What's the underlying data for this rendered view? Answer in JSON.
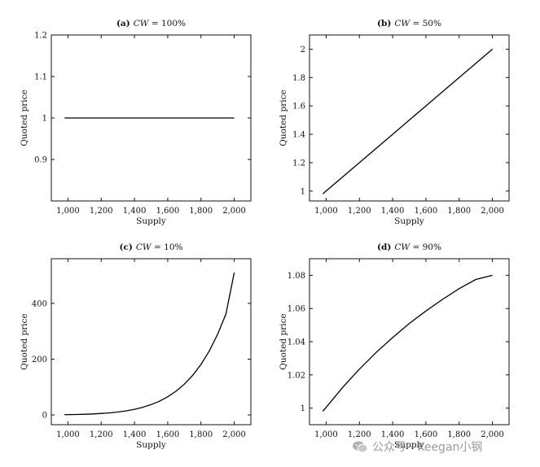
{
  "watermark": {
    "text": "公众号 · Keegan小钢",
    "icon": "wechat-icon"
  },
  "chart_data": [
    {
      "type": "line",
      "panel_label": "(a)",
      "param_symbol": "CW",
      "param_value": " = 100%",
      "xlabel": "Supply",
      "ylabel": "Quoted price",
      "xlim": [
        900,
        2100
      ],
      "ylim": [
        0.8,
        1.2
      ],
      "xticks": [
        1000,
        1200,
        1400,
        1600,
        1800,
        2000
      ],
      "xtick_labels": [
        "1,000",
        "1,200",
        "1,400",
        "1,600",
        "1,800",
        "2,000"
      ],
      "yticks": [
        0.9,
        1,
        1.1,
        1.2
      ],
      "ytick_labels": [
        "0.9",
        "1",
        "1.1",
        "1.2"
      ],
      "series": [
        {
          "x": [
            980,
            1100,
            1200,
            1300,
            1400,
            1500,
            1600,
            1700,
            1800,
            1900,
            2000
          ],
          "y": [
            1,
            1,
            1,
            1,
            1,
            1,
            1,
            1,
            1,
            1,
            1
          ]
        }
      ]
    },
    {
      "type": "line",
      "panel_label": "(b)",
      "param_symbol": "CW",
      "param_value": " = 50%",
      "xlabel": "Supply",
      "ylabel": "Quoted price",
      "xlim": [
        900,
        2100
      ],
      "ylim": [
        0.93,
        2.1
      ],
      "xticks": [
        1000,
        1200,
        1400,
        1600,
        1800,
        2000
      ],
      "xtick_labels": [
        "1,000",
        "1,200",
        "1,400",
        "1,600",
        "1,800",
        "2,000"
      ],
      "yticks": [
        1,
        1.2,
        1.4,
        1.6,
        1.8,
        2
      ],
      "ytick_labels": [
        "1",
        "1.2",
        "1.4",
        "1.6",
        "1.8",
        "2"
      ],
      "series": [
        {
          "x": [
            980,
            1100,
            1200,
            1300,
            1400,
            1500,
            1600,
            1700,
            1800,
            1900,
            2000
          ],
          "y": [
            0.98,
            1.1,
            1.2,
            1.3,
            1.4,
            1.5,
            1.6,
            1.7,
            1.8,
            1.9,
            2.0
          ]
        }
      ]
    },
    {
      "type": "line",
      "panel_label": "(c)",
      "param_symbol": "CW",
      "param_value": " = 10%",
      "xlabel": "Supply",
      "ylabel": "Quoted price",
      "xlim": [
        900,
        2100
      ],
      "ylim": [
        -35,
        560
      ],
      "xticks": [
        1000,
        1200,
        1400,
        1600,
        1800,
        2000
      ],
      "xtick_labels": [
        "1,000",
        "1,200",
        "1,400",
        "1,600",
        "1,800",
        "2,000"
      ],
      "yticks": [
        0,
        200,
        400
      ],
      "ytick_labels": [
        "0",
        "200",
        "400"
      ],
      "series": [
        {
          "x": [
            980,
            1050,
            1100,
            1150,
            1200,
            1250,
            1300,
            1350,
            1400,
            1450,
            1500,
            1550,
            1600,
            1650,
            1700,
            1750,
            1800,
            1850,
            1900,
            1950,
            2000
          ],
          "y": [
            0.8,
            1.5,
            2.4,
            3.6,
            5.2,
            7.4,
            10.6,
            14.7,
            20.2,
            27.4,
            36.9,
            49.1,
            64.9,
            84.9,
            110.2,
            141.8,
            181.1,
            229.5,
            289.1,
            362.0,
            510.0
          ]
        }
      ]
    },
    {
      "type": "line",
      "panel_label": "(d)",
      "param_symbol": "CW",
      "param_value": " = 90%",
      "xlabel": "Supply",
      "ylabel": "Quoted price",
      "xlim": [
        900,
        2100
      ],
      "ylim": [
        0.99,
        1.09
      ],
      "xticks": [
        1000,
        1200,
        1400,
        1600,
        1800,
        2000
      ],
      "xtick_labels": [
        "1,000",
        "1,200",
        "1,400",
        "1,600",
        "1,800",
        "2,000"
      ],
      "yticks": [
        1,
        1.02,
        1.04,
        1.06,
        1.08
      ],
      "ytick_labels": [
        "1",
        "1.02",
        "1.04",
        "1.06",
        "1.08"
      ],
      "series": [
        {
          "x": [
            980,
            1100,
            1200,
            1300,
            1400,
            1500,
            1600,
            1700,
            1800,
            1900,
            2000
          ],
          "y": [
            0.998,
            1.0125,
            1.0235,
            1.0335,
            1.0425,
            1.051,
            1.0585,
            1.0655,
            1.072,
            1.0775,
            1.08
          ]
        }
      ]
    }
  ]
}
